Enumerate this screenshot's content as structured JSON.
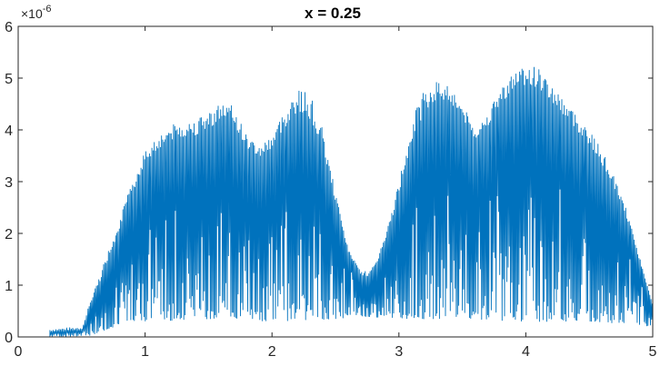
{
  "chart_data": {
    "type": "line",
    "title": "x = 0.25",
    "xlabel": "",
    "ylabel": "",
    "xlim": [
      0,
      5
    ],
    "ylim": [
      0,
      6e-06
    ],
    "y_exponent_base": "×10",
    "y_exponent_power": "-6",
    "x_ticks": [
      "0",
      "1",
      "2",
      "3",
      "4",
      "5"
    ],
    "y_ticks": [
      "0",
      "1",
      "2",
      "3",
      "4",
      "5",
      "6"
    ],
    "x_tick_values": [
      0,
      1,
      2,
      3,
      4,
      5
    ],
    "y_tick_values": [
      0,
      1e-06,
      2e-06,
      3e-06,
      4e-06,
      5e-06,
      6e-06
    ],
    "grid": false,
    "legend": "none",
    "series_color": "#0072BD",
    "upper_envelope": {
      "x": [
        0,
        0.25,
        0.5,
        0.6,
        0.7,
        0.8,
        0.9,
        1.0,
        1.1,
        1.2,
        1.3,
        1.4,
        1.5,
        1.6,
        1.7,
        1.8,
        1.9,
        2.0,
        2.1,
        2.2,
        2.3,
        2.4,
        2.5,
        2.6,
        2.7,
        2.8,
        2.9,
        3.0,
        3.1,
        3.2,
        3.3,
        3.4,
        3.5,
        3.6,
        3.7,
        3.8,
        3.9,
        4.0,
        4.1,
        4.2,
        4.3,
        4.4,
        4.5,
        4.6,
        4.7,
        4.8,
        4.9,
        5.0
      ],
      "y": [
        0,
        1.5e-07,
        2e-07,
        9e-07,
        1.6e-06,
        2.3e-06,
        3e-06,
        3.6e-06,
        3.9e-06,
        4.1e-06,
        4.15e-06,
        4.2e-06,
        4.35e-06,
        4.55e-06,
        4.45e-06,
        3.9e-06,
        3.7e-06,
        3.9e-06,
        4.4e-06,
        4.8e-06,
        4.7e-06,
        4e-06,
        2.8e-06,
        1.7e-06,
        1.25e-06,
        1.35e-06,
        2e-06,
        3e-06,
        4.2e-06,
        4.8e-06,
        4.95e-06,
        4.9e-06,
        4.5e-06,
        4e-06,
        4.3e-06,
        4.8e-06,
        5.1e-06,
        5.3e-06,
        5.2e-06,
        4.9e-06,
        4.6e-06,
        4.3e-06,
        4e-06,
        3.6e-06,
        3.1e-06,
        2.4e-06,
        1.5e-06,
        6e-07
      ]
    },
    "lower_envelope": {
      "x": [
        0,
        0.5,
        0.6,
        0.7,
        0.8,
        1.0,
        1.5,
        2.0,
        2.5,
        2.7,
        3.0,
        3.5,
        4.0,
        4.5,
        4.8,
        5.0
      ],
      "y": [
        0,
        0,
        5e-08,
        1.5e-07,
        2.5e-07,
        3e-07,
        3.5e-07,
        3e-07,
        3.5e-07,
        4e-07,
        3.5e-07,
        3.5e-07,
        3e-07,
        3e-07,
        2.5e-07,
        2e-07
      ]
    },
    "mid_line": {
      "x": [
        0.6,
        0.8,
        1.0,
        1.3,
        1.6,
        1.9,
        2.2,
        2.5,
        2.75,
        3.0,
        3.3,
        3.6,
        3.9,
        4.2,
        4.5,
        4.8,
        5.0
      ],
      "y": [
        4e-07,
        1.5e-06,
        2.6e-06,
        2.9e-06,
        3.1e-06,
        2.7e-06,
        3e-06,
        2e-06,
        7e-07,
        2e-06,
        3.4e-06,
        3.2e-06,
        3.7e-06,
        3.3e-06,
        2.8e-06,
        1.8e-06,
        7e-07
      ]
    }
  }
}
